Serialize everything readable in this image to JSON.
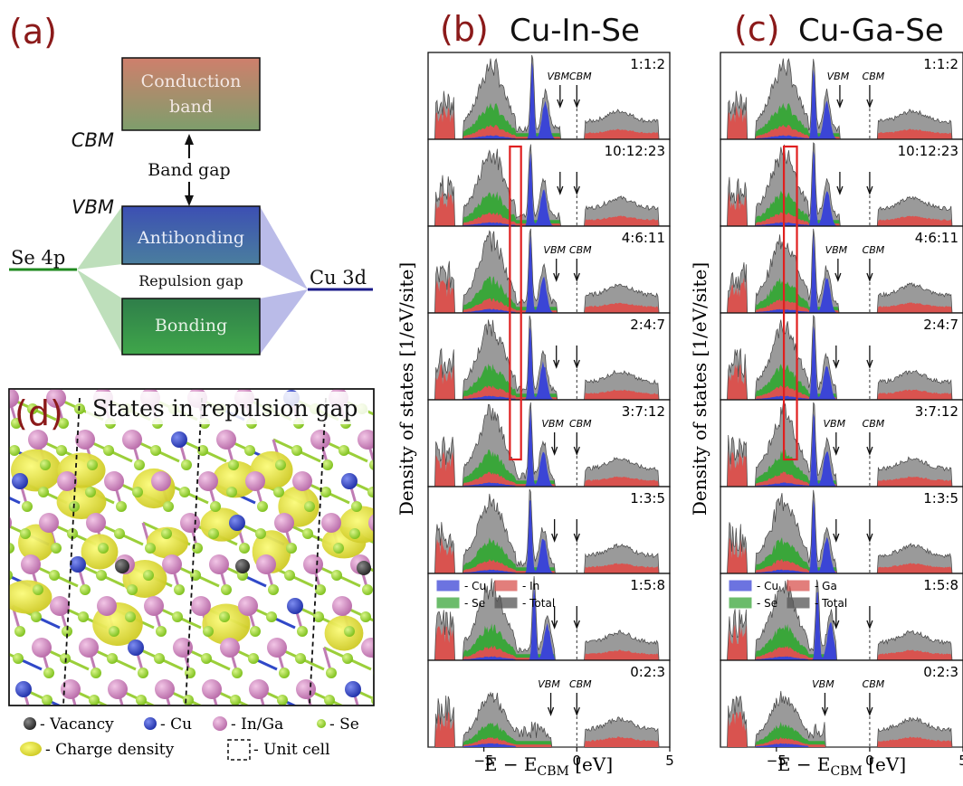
{
  "panels": {
    "a": "(a)",
    "b": "(b)",
    "c": "(c)",
    "d": "(d)"
  },
  "schematic": {
    "conduction": [
      "Conduction",
      "band"
    ],
    "cbm": "CBM",
    "vbm": "VBM",
    "band_gap": "Band gap",
    "antibonding": "Antibonding",
    "bonding": "Bonding",
    "repulsion_gap": "Repulsion gap",
    "se4p": "Se 4p",
    "cu3d": "Cu 3d"
  },
  "structure": {
    "title": "States in repulsion gap"
  },
  "legend_d": {
    "vacancy": "- Vacancy",
    "cu": "- Cu",
    "inga": "- In/Ga",
    "se": "- Se",
    "charge": "- Charge density",
    "unit": "- Unit cell"
  },
  "colors": {
    "cu": "#3b45d6",
    "se": "#3aa63a",
    "metal": "#d9534f",
    "total": "#555555",
    "highlight": "#e02020",
    "panel_letter": "#8b1a1a"
  },
  "chart_data": [
    {
      "type": "area",
      "title": "Cu-In-Se",
      "ylabel": "Density of states [1/eV/site]",
      "xlabel": "E − E_CBM [eV]",
      "xlim": [
        -8,
        5
      ],
      "xticks": [
        "−5",
        "0",
        "5"
      ],
      "legend": [
        {
          "name": "- Cu",
          "color": "#3b45d6"
        },
        {
          "name": "- In",
          "color": "#d9534f"
        },
        {
          "name": "- Se",
          "color": "#3aa63a"
        },
        {
          "name": "- Total",
          "color": "#555555"
        }
      ],
      "vbm_label": "VBM",
      "cbm_label": "CBM",
      "rows": [
        {
          "label": "1:1:2",
          "vbm": -0.9,
          "cbm": 0.0,
          "cu_peak": -2.4,
          "annot": true
        },
        {
          "label": "10:12:23",
          "vbm": -0.9,
          "cbm": 0.0,
          "cu_peak": -2.5,
          "annot": false
        },
        {
          "label": "4:6:11",
          "vbm": -1.1,
          "cbm": 0.0,
          "cu_peak": -2.5,
          "annot": true
        },
        {
          "label": "2:4:7",
          "vbm": -1.1,
          "cbm": 0.0,
          "cu_peak": -2.5,
          "annot": false
        },
        {
          "label": "3:7:12",
          "vbm": -1.2,
          "cbm": 0.0,
          "cu_peak": -2.5,
          "annot": true
        },
        {
          "label": "1:3:5",
          "vbm": -1.2,
          "cbm": 0.0,
          "cu_peak": -2.5,
          "annot": false
        },
        {
          "label": "1:5:8",
          "vbm": -1.2,
          "cbm": 0.0,
          "cu_peak": -2.3,
          "annot": false
        },
        {
          "label": "0:2:3",
          "vbm": -1.4,
          "cbm": 0.0,
          "cu_peak": null,
          "annot": true
        }
      ],
      "highlight_box": {
        "x": [
          -3.6,
          -3.0
        ],
        "rows": [
          1,
          4
        ]
      }
    },
    {
      "type": "area",
      "title": "Cu-Ga-Se",
      "ylabel": "Density of states [1/eV/site]",
      "xlabel": "E − E_CBM [eV]",
      "xlim": [
        -8,
        5
      ],
      "xticks": [
        "−5",
        "0",
        "5"
      ],
      "legend": [
        {
          "name": "- Cu",
          "color": "#3b45d6"
        },
        {
          "name": "- Ga",
          "color": "#d9534f"
        },
        {
          "name": "- Se",
          "color": "#3aa63a"
        },
        {
          "name": "- Total",
          "color": "#555555"
        }
      ],
      "vbm_label": "VBM",
      "cbm_label": "CBM",
      "rows": [
        {
          "label": "1:1:2",
          "vbm": -1.6,
          "cbm": 0.0,
          "cu_peak": -3.0,
          "annot": true
        },
        {
          "label": "10:12:23",
          "vbm": -1.6,
          "cbm": 0.0,
          "cu_peak": -3.0,
          "annot": false
        },
        {
          "label": "4:6:11",
          "vbm": -1.7,
          "cbm": 0.0,
          "cu_peak": -3.0,
          "annot": true
        },
        {
          "label": "2:4:7",
          "vbm": -1.8,
          "cbm": 0.0,
          "cu_peak": -3.0,
          "annot": false
        },
        {
          "label": "3:7:12",
          "vbm": -1.8,
          "cbm": 0.0,
          "cu_peak": -3.0,
          "annot": true
        },
        {
          "label": "1:3:5",
          "vbm": -1.8,
          "cbm": 0.0,
          "cu_peak": -3.0,
          "annot": false
        },
        {
          "label": "1:5:8",
          "vbm": -1.8,
          "cbm": 0.0,
          "cu_peak": -2.8,
          "annot": false
        },
        {
          "label": "0:2:3",
          "vbm": -2.4,
          "cbm": 0.0,
          "cu_peak": null,
          "annot": true
        }
      ],
      "highlight_box": {
        "x": [
          -4.6,
          -3.9
        ],
        "rows": [
          1,
          4
        ]
      }
    }
  ]
}
